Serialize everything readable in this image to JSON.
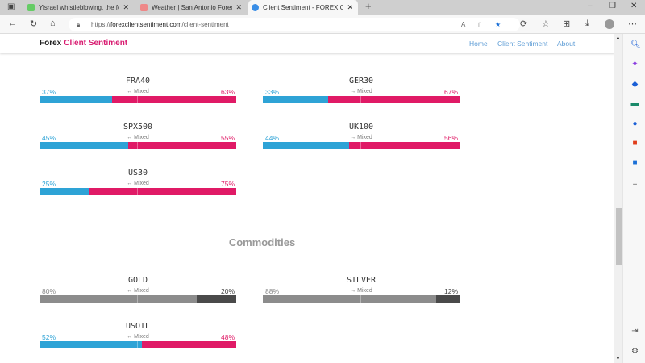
{
  "browser": {
    "tabs": [
      {
        "title": "Yisrael whistleblowing, the forex"
      },
      {
        "title": "Weather | San Antonio Forecast"
      },
      {
        "title": "Client Sentiment - FOREX Client S"
      }
    ],
    "url_prefix": "https://",
    "url_domain": "forexclientsentiment.com",
    "url_path": "/client-sentiment"
  },
  "site": {
    "brand_a": "Forex",
    "brand_b": "Client Sentiment",
    "nav": [
      "Home",
      "Client Sentiment",
      "About"
    ]
  },
  "mixed_label": "↔ Mixed",
  "indices": [
    {
      "name": "FRA40",
      "long": 37,
      "short": 63,
      "long_label": "37%",
      "short_label": "63%"
    },
    {
      "name": "GER30",
      "long": 33,
      "short": 67,
      "long_label": "33%",
      "short_label": "67%"
    },
    {
      "name": "SPX500",
      "long": 45,
      "short": 55,
      "long_label": "45%",
      "short_label": "55%"
    },
    {
      "name": "UK100",
      "long": 44,
      "short": 56,
      "long_label": "44%",
      "short_label": "56%"
    },
    {
      "name": "US30",
      "long": 25,
      "short": 75,
      "long_label": "25%",
      "short_label": "75%"
    }
  ],
  "commodities_heading": "Commodities",
  "commodities": [
    {
      "name": "GOLD",
      "long": 80,
      "short": 20,
      "long_label": "80%",
      "short_label": "20%",
      "muted": true
    },
    {
      "name": "SILVER",
      "long": 88,
      "short": 12,
      "long_label": "88%",
      "short_label": "12%",
      "muted": true
    },
    {
      "name": "USOIL",
      "long": 52,
      "short": 48,
      "long_label": "52%",
      "short_label": "48%",
      "muted": false
    }
  ],
  "colors": {
    "long": "#2ea3d6",
    "short": "#e01a66",
    "muted_long": "#8c8c8c",
    "muted_short": "#4a4a4a",
    "brand": "#d81b70"
  }
}
